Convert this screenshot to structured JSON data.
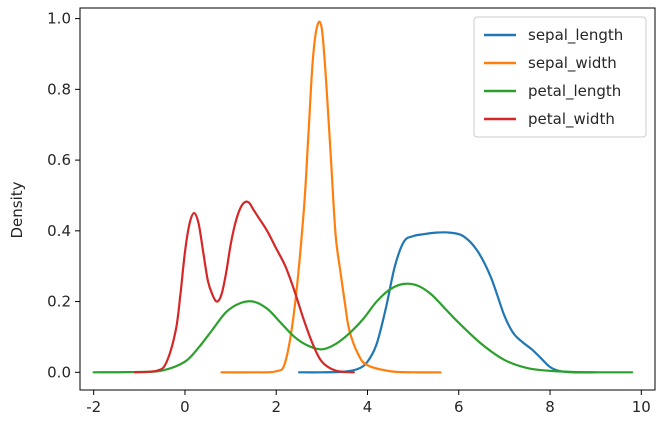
{
  "chart_data": {
    "type": "line",
    "title": "",
    "xlabel": "",
    "ylabel": "Density",
    "xlim": [
      -2.3,
      10.3
    ],
    "ylim": [
      -0.05,
      1.03
    ],
    "x_ticks": [
      -2,
      0,
      2,
      4,
      6,
      8,
      10
    ],
    "y_ticks": [
      0.0,
      0.2,
      0.4,
      0.6,
      0.8,
      1.0
    ],
    "x_tick_labels": [
      "-2",
      "0",
      "2",
      "4",
      "6",
      "8",
      "10"
    ],
    "y_tick_labels": [
      "0.0",
      "0.2",
      "0.4",
      "0.6",
      "0.8",
      "1.0"
    ],
    "grid": false,
    "legend_position": "top-right",
    "series": [
      {
        "name": "sepal_length",
        "color": "#1f77b4",
        "x": [
          2.5,
          3.0,
          3.5,
          3.8,
          4.0,
          4.2,
          4.4,
          4.6,
          4.8,
          5.0,
          5.2,
          5.5,
          5.8,
          6.1,
          6.4,
          6.7,
          7.0,
          7.2,
          7.4,
          7.6,
          7.8,
          8.0,
          8.2,
          8.5,
          9.0
        ],
        "y": [
          0.0,
          0.0,
          0.002,
          0.01,
          0.03,
          0.08,
          0.18,
          0.3,
          0.37,
          0.385,
          0.39,
          0.395,
          0.395,
          0.385,
          0.345,
          0.27,
          0.16,
          0.11,
          0.085,
          0.065,
          0.04,
          0.015,
          0.004,
          0.0,
          0.0
        ]
      },
      {
        "name": "sepal_width",
        "color": "#ff7f0e",
        "x": [
          0.8,
          1.5,
          2.0,
          2.2,
          2.4,
          2.6,
          2.7,
          2.8,
          2.9,
          3.0,
          3.1,
          3.2,
          3.3,
          3.4,
          3.5,
          3.6,
          3.8,
          4.0,
          4.5,
          5.0,
          5.6
        ],
        "y": [
          0.0,
          0.0,
          0.003,
          0.03,
          0.18,
          0.45,
          0.66,
          0.88,
          0.98,
          0.97,
          0.81,
          0.6,
          0.39,
          0.29,
          0.2,
          0.12,
          0.05,
          0.02,
          0.003,
          0.0,
          0.0
        ]
      },
      {
        "name": "petal_length",
        "color": "#2ca02c",
        "x": [
          -2.0,
          -1.0,
          -0.5,
          0.0,
          0.3,
          0.6,
          0.9,
          1.2,
          1.5,
          1.8,
          2.1,
          2.4,
          2.7,
          3.0,
          3.3,
          3.6,
          3.9,
          4.2,
          4.5,
          4.8,
          5.1,
          5.4,
          5.7,
          6.0,
          6.5,
          7.0,
          7.5,
          8.0,
          8.5,
          9.0,
          9.8
        ],
        "y": [
          0.0,
          0.001,
          0.005,
          0.03,
          0.07,
          0.12,
          0.17,
          0.195,
          0.2,
          0.18,
          0.14,
          0.1,
          0.075,
          0.065,
          0.08,
          0.11,
          0.15,
          0.2,
          0.235,
          0.25,
          0.245,
          0.22,
          0.18,
          0.14,
          0.08,
          0.035,
          0.012,
          0.004,
          0.001,
          0.0,
          0.0
        ]
      },
      {
        "name": "petal_width",
        "color": "#d62728",
        "x": [
          -1.1,
          -0.6,
          -0.4,
          -0.2,
          -0.1,
          0.0,
          0.1,
          0.2,
          0.3,
          0.4,
          0.5,
          0.6,
          0.7,
          0.8,
          0.9,
          1.0,
          1.1,
          1.2,
          1.3,
          1.4,
          1.5,
          1.6,
          1.8,
          2.0,
          2.2,
          2.4,
          2.6,
          2.8,
          3.0,
          3.3,
          3.7
        ],
        "y": [
          0.0,
          0.005,
          0.03,
          0.12,
          0.22,
          0.34,
          0.42,
          0.45,
          0.42,
          0.34,
          0.26,
          0.22,
          0.2,
          0.22,
          0.28,
          0.36,
          0.42,
          0.46,
          0.48,
          0.48,
          0.46,
          0.44,
          0.4,
          0.35,
          0.3,
          0.23,
          0.15,
          0.08,
          0.03,
          0.005,
          0.0
        ]
      }
    ]
  }
}
